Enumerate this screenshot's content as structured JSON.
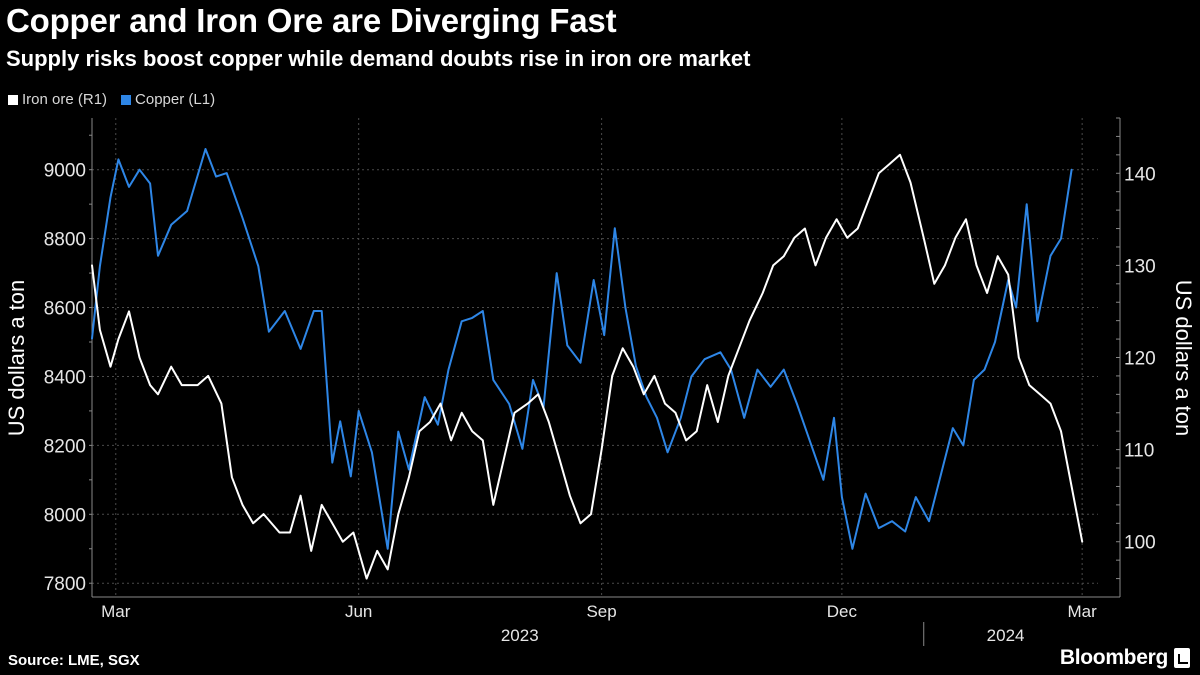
{
  "header": {
    "title": "Copper and Iron Ore are Diverging Fast",
    "subtitle": "Supply risks boost copper while demand doubts rise in iron ore market"
  },
  "legend": {
    "iron_ore_label": "Iron ore (R1)",
    "copper_label": "Copper (L1)"
  },
  "footer": {
    "source": "Source: LME, SGX",
    "brand": "Bloomberg"
  },
  "colors": {
    "background": "#000000",
    "iron_ore": "#ffffff",
    "copper": "#2e86e6",
    "grid": "#4a4a4a",
    "text": "#ffffff",
    "tick_text": "#e6e6e6"
  },
  "chart_data": {
    "type": "line",
    "title": "Copper and Iron Ore are Diverging Fast",
    "subtitle": "Supply risks boost copper while demand doubts rise in iron ore market",
    "left_axis": {
      "label": "US dollars a ton",
      "ylim": [
        7760,
        9150
      ],
      "ticks": [
        7800,
        8000,
        8200,
        8400,
        8600,
        8800,
        9000
      ]
    },
    "right_axis": {
      "label": "US dollars a ton",
      "ylim": [
        94,
        146
      ],
      "ticks": [
        100,
        110,
        120,
        130,
        140
      ]
    },
    "x_axis": {
      "range": [
        "2023-02-20",
        "2024-03-07"
      ],
      "month_labels": [
        {
          "label": "Mar",
          "date": "2023-03-01"
        },
        {
          "label": "Jun",
          "date": "2023-06-01"
        },
        {
          "label": "Sep",
          "date": "2023-09-01"
        },
        {
          "label": "Dec",
          "date": "2023-12-01"
        },
        {
          "label": "Mar",
          "date": "2024-03-01"
        }
      ],
      "year_labels": [
        {
          "label": "2023",
          "date": "2023-08-01"
        },
        {
          "label": "2024",
          "date": "2024-02-01"
        }
      ],
      "year_divider": "2024-01-01"
    },
    "series": [
      {
        "name": "Copper (L1)",
        "axis": "left",
        "color": "#2e86e6",
        "points": [
          [
            "2023-02-20",
            8510
          ],
          [
            "2023-02-23",
            8720
          ],
          [
            "2023-02-27",
            8920
          ],
          [
            "2023-03-02",
            9030
          ],
          [
            "2023-03-06",
            8950
          ],
          [
            "2023-03-10",
            9000
          ],
          [
            "2023-03-14",
            8960
          ],
          [
            "2023-03-17",
            8750
          ],
          [
            "2023-03-22",
            8840
          ],
          [
            "2023-03-28",
            8880
          ],
          [
            "2023-04-04",
            9060
          ],
          [
            "2023-04-08",
            8980
          ],
          [
            "2023-04-12",
            8990
          ],
          [
            "2023-04-18",
            8860
          ],
          [
            "2023-04-24",
            8720
          ],
          [
            "2023-04-28",
            8530
          ],
          [
            "2023-05-04",
            8590
          ],
          [
            "2023-05-10",
            8480
          ],
          [
            "2023-05-15",
            8590
          ],
          [
            "2023-05-18",
            8590
          ],
          [
            "2023-05-22",
            8150
          ],
          [
            "2023-05-25",
            8270
          ],
          [
            "2023-05-29",
            8110
          ],
          [
            "2023-06-01",
            8300
          ],
          [
            "2023-06-06",
            8180
          ],
          [
            "2023-06-12",
            7900
          ],
          [
            "2023-06-16",
            8240
          ],
          [
            "2023-06-20",
            8130
          ],
          [
            "2023-06-26",
            8340
          ],
          [
            "2023-07-01",
            8260
          ],
          [
            "2023-07-05",
            8420
          ],
          [
            "2023-07-10",
            8560
          ],
          [
            "2023-07-14",
            8570
          ],
          [
            "2023-07-18",
            8590
          ],
          [
            "2023-07-22",
            8390
          ],
          [
            "2023-07-28",
            8320
          ],
          [
            "2023-08-02",
            8190
          ],
          [
            "2023-08-06",
            8390
          ],
          [
            "2023-08-10",
            8310
          ],
          [
            "2023-08-15",
            8700
          ],
          [
            "2023-08-19",
            8490
          ],
          [
            "2023-08-24",
            8440
          ],
          [
            "2023-08-29",
            8680
          ],
          [
            "2023-09-02",
            8520
          ],
          [
            "2023-09-06",
            8830
          ],
          [
            "2023-09-10",
            8600
          ],
          [
            "2023-09-14",
            8430
          ],
          [
            "2023-09-18",
            8340
          ],
          [
            "2023-09-22",
            8280
          ],
          [
            "2023-09-26",
            8180
          ],
          [
            "2023-10-01",
            8280
          ],
          [
            "2023-10-05",
            8400
          ],
          [
            "2023-10-10",
            8450
          ],
          [
            "2023-10-16",
            8470
          ],
          [
            "2023-10-20",
            8420
          ],
          [
            "2023-10-25",
            8280
          ],
          [
            "2023-10-30",
            8420
          ],
          [
            "2023-11-04",
            8370
          ],
          [
            "2023-11-09",
            8420
          ],
          [
            "2023-11-14",
            8320
          ],
          [
            "2023-11-19",
            8210
          ],
          [
            "2023-11-24",
            8100
          ],
          [
            "2023-11-28",
            8280
          ],
          [
            "2023-12-01",
            8050
          ],
          [
            "2023-12-05",
            7900
          ],
          [
            "2023-12-10",
            8060
          ],
          [
            "2023-12-15",
            7960
          ],
          [
            "2023-12-20",
            7980
          ],
          [
            "2023-12-25",
            7950
          ],
          [
            "2023-12-29",
            8050
          ],
          [
            "2024-01-03",
            7980
          ],
          [
            "2024-01-08",
            8130
          ],
          [
            "2024-01-12",
            8250
          ],
          [
            "2024-01-16",
            8200
          ],
          [
            "2024-01-20",
            8390
          ],
          [
            "2024-01-24",
            8420
          ],
          [
            "2024-01-28",
            8500
          ],
          [
            "2024-02-02",
            8680
          ],
          [
            "2024-02-05",
            8600
          ],
          [
            "2024-02-09",
            8900
          ],
          [
            "2024-02-13",
            8560
          ],
          [
            "2024-02-18",
            8750
          ],
          [
            "2024-02-22",
            8800
          ],
          [
            "2024-02-26",
            9000
          ]
        ]
      },
      {
        "name": "Iron ore (R1)",
        "axis": "right",
        "color": "#ffffff",
        "points": [
          [
            "2023-02-20",
            130
          ],
          [
            "2023-02-23",
            123
          ],
          [
            "2023-02-27",
            119
          ],
          [
            "2023-03-02",
            122
          ],
          [
            "2023-03-06",
            125
          ],
          [
            "2023-03-10",
            120
          ],
          [
            "2023-03-14",
            117
          ],
          [
            "2023-03-17",
            116
          ],
          [
            "2023-03-22",
            119
          ],
          [
            "2023-03-26",
            117
          ],
          [
            "2023-04-01",
            117
          ],
          [
            "2023-04-05",
            118
          ],
          [
            "2023-04-10",
            115
          ],
          [
            "2023-04-14",
            107
          ],
          [
            "2023-04-18",
            104
          ],
          [
            "2023-04-22",
            102
          ],
          [
            "2023-04-26",
            103
          ],
          [
            "2023-05-02",
            101
          ],
          [
            "2023-05-06",
            101
          ],
          [
            "2023-05-10",
            105
          ],
          [
            "2023-05-14",
            99
          ],
          [
            "2023-05-18",
            104
          ],
          [
            "2023-05-22",
            102
          ],
          [
            "2023-05-26",
            100
          ],
          [
            "2023-05-30",
            101
          ],
          [
            "2023-06-04",
            96
          ],
          [
            "2023-06-08",
            99
          ],
          [
            "2023-06-12",
            97
          ],
          [
            "2023-06-16",
            103
          ],
          [
            "2023-06-20",
            107
          ],
          [
            "2023-06-24",
            112
          ],
          [
            "2023-06-28",
            113
          ],
          [
            "2023-07-02",
            115
          ],
          [
            "2023-07-06",
            111
          ],
          [
            "2023-07-10",
            114
          ],
          [
            "2023-07-14",
            112
          ],
          [
            "2023-07-18",
            111
          ],
          [
            "2023-07-22",
            104
          ],
          [
            "2023-07-26",
            109
          ],
          [
            "2023-07-30",
            114
          ],
          [
            "2023-08-04",
            115
          ],
          [
            "2023-08-08",
            116
          ],
          [
            "2023-08-12",
            113
          ],
          [
            "2023-08-16",
            109
          ],
          [
            "2023-08-20",
            105
          ],
          [
            "2023-08-24",
            102
          ],
          [
            "2023-08-28",
            103
          ],
          [
            "2023-09-01",
            110
          ],
          [
            "2023-09-05",
            118
          ],
          [
            "2023-09-09",
            121
          ],
          [
            "2023-09-13",
            119
          ],
          [
            "2023-09-17",
            116
          ],
          [
            "2023-09-21",
            118
          ],
          [
            "2023-09-25",
            115
          ],
          [
            "2023-09-29",
            114
          ],
          [
            "2023-10-03",
            111
          ],
          [
            "2023-10-07",
            112
          ],
          [
            "2023-10-11",
            117
          ],
          [
            "2023-10-15",
            113
          ],
          [
            "2023-10-19",
            118
          ],
          [
            "2023-10-23",
            121
          ],
          [
            "2023-10-27",
            124
          ],
          [
            "2023-11-01",
            127
          ],
          [
            "2023-11-05",
            130
          ],
          [
            "2023-11-09",
            131
          ],
          [
            "2023-11-13",
            133
          ],
          [
            "2023-11-17",
            134
          ],
          [
            "2023-11-21",
            130
          ],
          [
            "2023-11-25",
            133
          ],
          [
            "2023-11-29",
            135
          ],
          [
            "2023-12-03",
            133
          ],
          [
            "2023-12-07",
            134
          ],
          [
            "2023-12-11",
            137
          ],
          [
            "2023-12-15",
            140
          ],
          [
            "2023-12-19",
            141
          ],
          [
            "2023-12-23",
            142
          ],
          [
            "2023-12-27",
            139
          ],
          [
            "2024-01-01",
            133
          ],
          [
            "2024-01-05",
            128
          ],
          [
            "2024-01-09",
            130
          ],
          [
            "2024-01-13",
            133
          ],
          [
            "2024-01-17",
            135
          ],
          [
            "2024-01-21",
            130
          ],
          [
            "2024-01-25",
            127
          ],
          [
            "2024-01-29",
            131
          ],
          [
            "2024-02-02",
            129
          ],
          [
            "2024-02-06",
            120
          ],
          [
            "2024-02-10",
            117
          ],
          [
            "2024-02-14",
            116
          ],
          [
            "2024-02-18",
            115
          ],
          [
            "2024-02-22",
            112
          ],
          [
            "2024-02-26",
            106
          ],
          [
            "2024-03-01",
            100
          ]
        ]
      }
    ]
  }
}
